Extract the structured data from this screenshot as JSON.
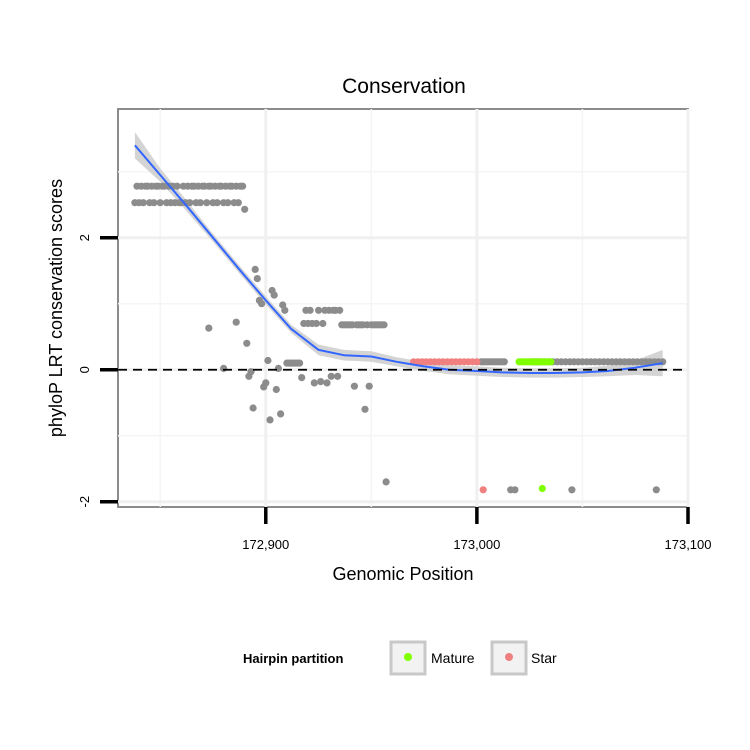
{
  "chart_data": {
    "type": "scatter",
    "title": "Conservation",
    "xlabel": "Genomic Position",
    "ylabel": "phyloP LRT conservation scores",
    "xlim": [
      172830,
      173100
    ],
    "ylim": [
      -2.08,
      3.95
    ],
    "x_ticks": [
      172900,
      173000,
      173100
    ],
    "x_tick_labels": [
      "172,900",
      "173,000",
      "173,100"
    ],
    "y_ticks": [
      -2,
      0,
      2
    ],
    "y_tick_labels": [
      "-2",
      "0",
      "2"
    ],
    "reference_line": {
      "y": 0,
      "style": "dashed"
    },
    "grid": true,
    "legend": {
      "title": "Hairpin partition",
      "position": "bottom",
      "entries": [
        {
          "label": "Mature",
          "color": "#7fff00"
        },
        {
          "label": "Star",
          "color": "#f08080"
        }
      ]
    },
    "series": [
      {
        "name": "Other",
        "color": "#8c8c8c",
        "points": [
          [
            172838,
            2.53
          ],
          [
            172839,
            2.78
          ],
          [
            172840,
            2.53
          ],
          [
            172841,
            2.78
          ],
          [
            172842,
            2.53
          ],
          [
            172843,
            2.78
          ],
          [
            172844,
            2.78
          ],
          [
            172845,
            2.53
          ],
          [
            172846,
            2.78
          ],
          [
            172847,
            2.53
          ],
          [
            172848,
            2.78
          ],
          [
            172849,
            2.78
          ],
          [
            172850,
            2.53
          ],
          [
            172851,
            2.78
          ],
          [
            172852,
            2.78
          ],
          [
            172853,
            2.53
          ],
          [
            172854,
            2.78
          ],
          [
            172855,
            2.53
          ],
          [
            172856,
            2.78
          ],
          [
            172857,
            2.53
          ],
          [
            172858,
            2.78
          ],
          [
            172859,
            2.53
          ],
          [
            172860,
            2.53
          ],
          [
            172861,
            2.78
          ],
          [
            172862,
            2.53
          ],
          [
            172863,
            2.78
          ],
          [
            172864,
            2.53
          ],
          [
            172865,
            2.78
          ],
          [
            172866,
            2.78
          ],
          [
            172867,
            2.53
          ],
          [
            172868,
            2.78
          ],
          [
            172869,
            2.53
          ],
          [
            172870,
            2.78
          ],
          [
            172871,
            2.78
          ],
          [
            172872,
            2.53
          ],
          [
            172873,
            2.78
          ],
          [
            172874,
            2.78
          ],
          [
            172875,
            2.53
          ],
          [
            172876,
            2.78
          ],
          [
            172877,
            2.53
          ],
          [
            172878,
            2.78
          ],
          [
            172879,
            2.78
          ],
          [
            172880,
            2.53
          ],
          [
            172881,
            2.78
          ],
          [
            172882,
            2.53
          ],
          [
            172883,
            2.78
          ],
          [
            172884,
            2.78
          ],
          [
            172885,
            2.53
          ],
          [
            172886,
            2.78
          ],
          [
            172887,
            2.53
          ],
          [
            172888,
            2.78
          ],
          [
            172889,
            2.78
          ],
          [
            172890,
            2.43
          ],
          [
            172873,
            0.63
          ],
          [
            172880,
            0.02
          ],
          [
            172886,
            0.72
          ],
          [
            172891,
            0.4
          ],
          [
            172892,
            -0.1
          ],
          [
            172893,
            -0.03
          ],
          [
            172894,
            -0.58
          ],
          [
            172895,
            1.52
          ],
          [
            172896,
            1.38
          ],
          [
            172897,
            1.05
          ],
          [
            172898,
            1.0
          ],
          [
            172899,
            -0.26
          ],
          [
            172900,
            -0.2
          ],
          [
            172901,
            0.14
          ],
          [
            172902,
            -0.76
          ],
          [
            172903,
            1.2
          ],
          [
            172904,
            1.13
          ],
          [
            172905,
            -0.3
          ],
          [
            172906,
            0.02
          ],
          [
            172907,
            -0.67
          ],
          [
            172908,
            0.98
          ],
          [
            172909,
            0.9
          ],
          [
            172910,
            0.1
          ],
          [
            172911,
            0.1
          ],
          [
            172912,
            0.1
          ],
          [
            172913,
            0.1
          ],
          [
            172914,
            0.1
          ],
          [
            172915,
            0.1
          ],
          [
            172916,
            0.1
          ],
          [
            172917,
            -0.12
          ],
          [
            172918,
            0.7
          ],
          [
            172919,
            0.9
          ],
          [
            172920,
            0.7
          ],
          [
            172921,
            0.9
          ],
          [
            172922,
            0.7
          ],
          [
            172923,
            -0.2
          ],
          [
            172924,
            0.7
          ],
          [
            172925,
            0.9
          ],
          [
            172926,
            -0.18
          ],
          [
            172927,
            0.7
          ],
          [
            172928,
            0.9
          ],
          [
            172929,
            -0.2
          ],
          [
            172930,
            0.9
          ],
          [
            172931,
            -0.1
          ],
          [
            172932,
            0.9
          ],
          [
            172933,
            0.9
          ],
          [
            172934,
            -0.1
          ],
          [
            172935,
            0.9
          ],
          [
            172936,
            0.68
          ],
          [
            172937,
            0.68
          ],
          [
            172938,
            0.68
          ],
          [
            172939,
            0.68
          ],
          [
            172940,
            0.68
          ],
          [
            172941,
            0.68
          ],
          [
            172942,
            -0.25
          ],
          [
            172943,
            0.68
          ],
          [
            172944,
            0.68
          ],
          [
            172945,
            0.68
          ],
          [
            172946,
            0.68
          ],
          [
            172947,
            -0.6
          ],
          [
            172948,
            0.68
          ],
          [
            172949,
            -0.25
          ],
          [
            172950,
            0.68
          ],
          [
            172951,
            0.68
          ],
          [
            172952,
            0.68
          ],
          [
            172953,
            0.68
          ],
          [
            172954,
            0.68
          ],
          [
            172955,
            0.68
          ],
          [
            172956,
            0.68
          ],
          [
            172957,
            -1.7
          ],
          [
            173002,
            0.12
          ],
          [
            173003,
            0.12
          ],
          [
            173004,
            0.12
          ],
          [
            173005,
            0.12
          ],
          [
            173006,
            0.12
          ],
          [
            173007,
            0.12
          ],
          [
            173008,
            0.12
          ],
          [
            173009,
            0.12
          ],
          [
            173010,
            0.12
          ],
          [
            173011,
            0.12
          ],
          [
            173012,
            0.12
          ],
          [
            173013,
            0.12
          ],
          [
            173026,
            0.12
          ],
          [
            173027,
            0.12
          ],
          [
            173028,
            0.12
          ],
          [
            173029,
            0.12
          ],
          [
            173030,
            0.12
          ],
          [
            173032,
            0.12
          ],
          [
            173034,
            0.12
          ],
          [
            173036,
            0.12
          ],
          [
            173038,
            0.12
          ],
          [
            173040,
            0.12
          ],
          [
            173042,
            0.12
          ],
          [
            173044,
            0.12
          ],
          [
            173046,
            0.12
          ],
          [
            173048,
            0.12
          ],
          [
            173050,
            0.12
          ],
          [
            173052,
            0.12
          ],
          [
            173054,
            0.12
          ],
          [
            173056,
            0.12
          ],
          [
            173058,
            0.12
          ],
          [
            173060,
            0.12
          ],
          [
            173062,
            0.12
          ],
          [
            173064,
            0.12
          ],
          [
            173066,
            0.12
          ],
          [
            173068,
            0.12
          ],
          [
            173070,
            0.12
          ],
          [
            173072,
            0.12
          ],
          [
            173074,
            0.12
          ],
          [
            173076,
            0.12
          ],
          [
            173078,
            0.12
          ],
          [
            173080,
            0.12
          ],
          [
            173082,
            0.12
          ],
          [
            173084,
            0.12
          ],
          [
            173086,
            0.12
          ],
          [
            173088,
            0.12
          ],
          [
            173016,
            -1.82
          ],
          [
            173018,
            -1.82
          ],
          [
            173045,
            -1.82
          ],
          [
            173085,
            -1.82
          ]
        ]
      },
      {
        "name": "Star",
        "color": "#f08080",
        "points": [
          [
            172970,
            0.12
          ],
          [
            172972,
            0.12
          ],
          [
            172974,
            0.12
          ],
          [
            172976,
            0.12
          ],
          [
            172978,
            0.12
          ],
          [
            172980,
            0.12
          ],
          [
            172982,
            0.12
          ],
          [
            172984,
            0.12
          ],
          [
            172986,
            0.12
          ],
          [
            172988,
            0.12
          ],
          [
            172990,
            0.12
          ],
          [
            172992,
            0.12
          ],
          [
            172994,
            0.12
          ],
          [
            172996,
            0.12
          ],
          [
            172998,
            0.12
          ],
          [
            173000,
            0.12
          ],
          [
            173003,
            -1.82
          ]
        ]
      },
      {
        "name": "Mature",
        "color": "#7fff00",
        "points": [
          [
            173020,
            0.12
          ],
          [
            173021,
            0.12
          ],
          [
            173022,
            0.12
          ],
          [
            173023,
            0.12
          ],
          [
            173024,
            0.12
          ],
          [
            173025,
            0.12
          ],
          [
            173026,
            0.12
          ],
          [
            173027,
            0.12
          ],
          [
            173028,
            0.12
          ],
          [
            173029,
            0.12
          ],
          [
            173030,
            0.12
          ],
          [
            173031,
            0.12
          ],
          [
            173032,
            0.12
          ],
          [
            173033,
            0.12
          ],
          [
            173034,
            0.12
          ],
          [
            173035,
            0.12
          ],
          [
            173031,
            -1.8
          ]
        ]
      }
    ],
    "smooth": {
      "color": "#3366ff",
      "band_color": "#cccccc",
      "x": [
        172838,
        172850,
        172862,
        172875,
        172888,
        172900,
        172912,
        172925,
        172937,
        172950,
        172962,
        172975,
        172987,
        173000,
        173012,
        173025,
        173037,
        173050,
        173062,
        173075,
        173088
      ],
      "y": [
        3.4,
        2.95,
        2.5,
        2.0,
        1.5,
        1.05,
        0.62,
        0.3,
        0.22,
        0.2,
        0.12,
        0.05,
        0.0,
        -0.02,
        -0.04,
        -0.05,
        -0.05,
        -0.04,
        -0.02,
        0.03,
        0.1
      ],
      "lower": [
        3.2,
        2.85,
        2.42,
        1.94,
        1.44,
        0.99,
        0.56,
        0.22,
        0.14,
        0.12,
        0.05,
        -0.02,
        -0.07,
        -0.09,
        -0.11,
        -0.12,
        -0.12,
        -0.11,
        -0.1,
        -0.08,
        -0.1
      ],
      "upper": [
        3.6,
        3.05,
        2.58,
        2.06,
        1.56,
        1.11,
        0.68,
        0.38,
        0.3,
        0.28,
        0.19,
        0.12,
        0.07,
        0.05,
        0.03,
        0.02,
        0.02,
        0.03,
        0.06,
        0.14,
        0.3
      ]
    }
  }
}
